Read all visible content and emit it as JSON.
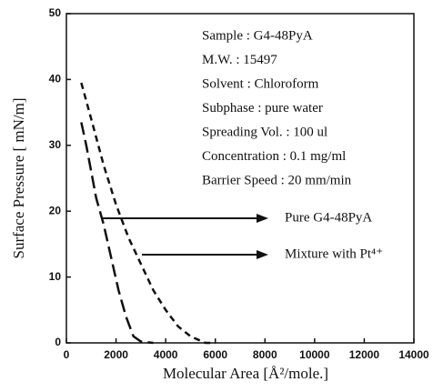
{
  "chart_data": {
    "type": "line",
    "xlabel": "Molecular Area [Å²/mole.]",
    "ylabel": "Surface Pressure [ mN/m]",
    "xlim": [
      0,
      14000
    ],
    "xticks": [
      0,
      2000,
      4000,
      6000,
      8000,
      10000,
      12000,
      14000
    ],
    "ylim": [
      0,
      50
    ],
    "yticks": [
      0,
      10,
      20,
      30,
      40,
      50
    ],
    "annotations": [
      "Sample : G4-48PyA",
      "M.W. : 15497",
      "Solvent : Chloroform",
      "Subphase : pure water",
      "Spreading Vol. : 100 ul",
      "Concentration : 0.1 mg/ml",
      "Barrier Speed : 20 mm/min"
    ],
    "series": [
      {
        "name": "Pure G4-48PyA",
        "color": "#111111",
        "x": [
          600,
          800,
          1000,
          1200,
          1500,
          1800,
          2100,
          2400,
          2700,
          3000,
          3500
        ],
        "values": [
          33.5,
          30,
          26,
          22,
          18,
          13,
          8,
          4,
          1,
          0.2,
          0
        ]
      },
      {
        "name": "Mixture with Pt⁴⁺",
        "color": "#111111",
        "x": [
          600,
          1000,
          1500,
          2000,
          2500,
          3000,
          3500,
          4000,
          4500,
          5000,
          5600,
          6000
        ],
        "values": [
          39.5,
          34,
          27,
          21,
          16,
          12,
          8,
          5,
          2.5,
          1,
          0,
          0
        ]
      }
    ]
  }
}
